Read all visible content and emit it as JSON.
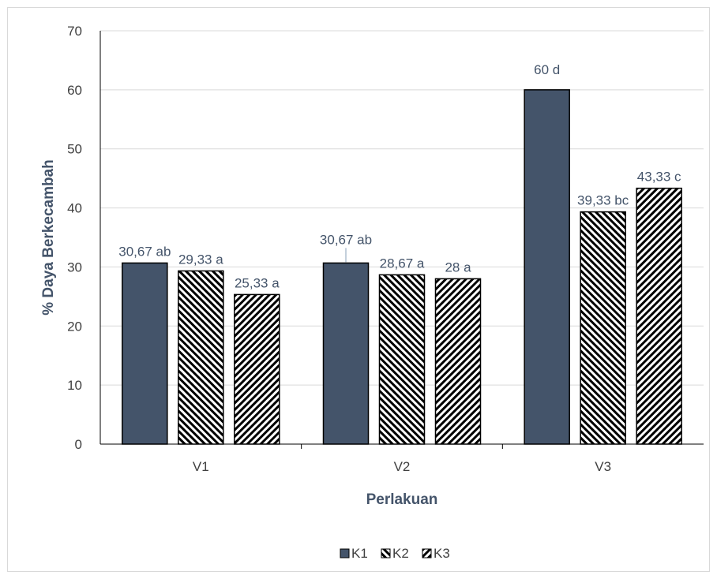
{
  "chart_data": {
    "type": "bar",
    "title": "",
    "xlabel": "Perlakuan",
    "ylabel": "% Daya Berkecambah",
    "ylim": [
      0,
      70
    ],
    "yticks": [
      0,
      10,
      20,
      30,
      40,
      50,
      60,
      70
    ],
    "categories": [
      "V1",
      "V2",
      "V3"
    ],
    "series": [
      {
        "name": "K1",
        "values": [
          30.67,
          30.67,
          60
        ],
        "labels": [
          "30,67 ab",
          "30,67 ab",
          "60 d"
        ],
        "color": "#44546a",
        "pattern": "solid"
      },
      {
        "name": "K2",
        "values": [
          29.33,
          28.67,
          39.33
        ],
        "labels": [
          "29,33 a",
          "28,67 a",
          "39,33 bc"
        ],
        "color": "#000000",
        "pattern": "diagonal-left"
      },
      {
        "name": "K3",
        "values": [
          25.33,
          28,
          43.33
        ],
        "labels": [
          "25,33 a",
          "28 a",
          "43,33 c"
        ],
        "color": "#000000",
        "pattern": "diagonal-right"
      }
    ],
    "grid": true,
    "legend": "bottom"
  }
}
